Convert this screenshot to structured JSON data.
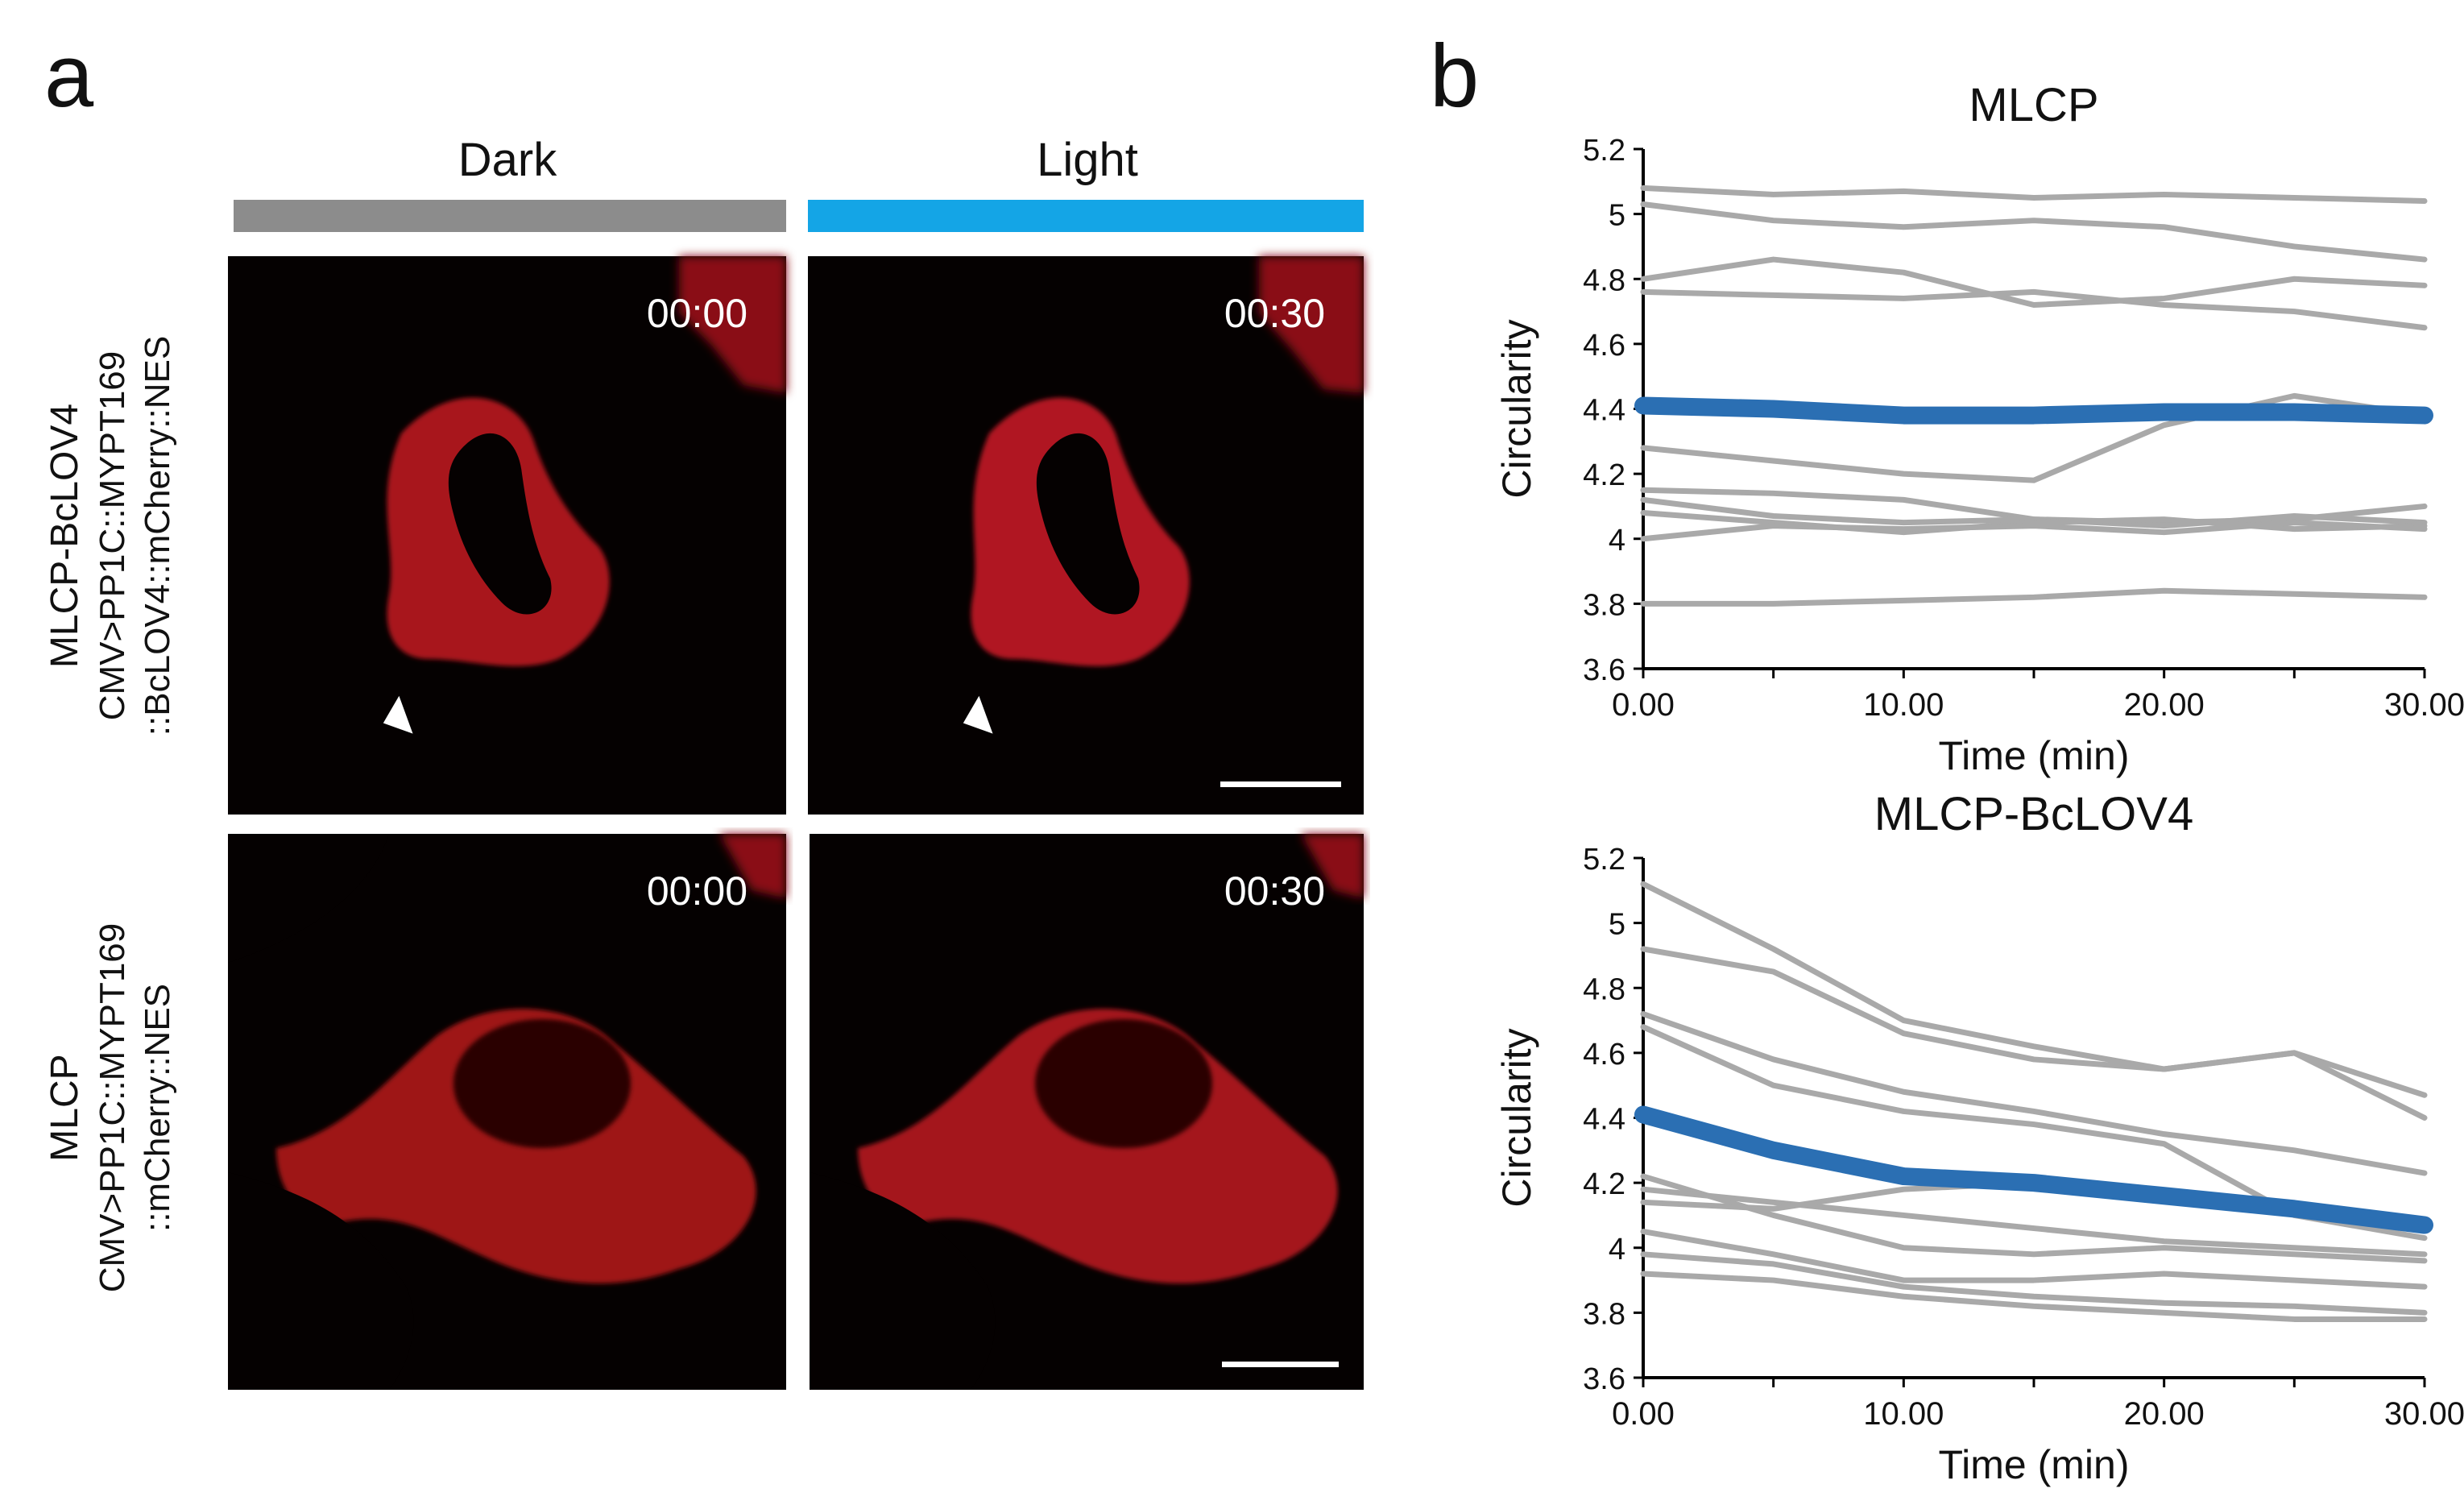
{
  "panels": {
    "a_label": "a",
    "b_label": "b"
  },
  "conditions": {
    "dark": {
      "label": "Dark",
      "bar_color": "#8c8c8c"
    },
    "light": {
      "label": "Light",
      "bar_color": "#14a5e6"
    }
  },
  "rows": [
    {
      "name": "MLCP-BcLOV4",
      "construct_line1": "CMV>PP1C::MYPT169",
      "construct_line2": "::BcLOV4::mCherry::NES",
      "time_dark": "00:00",
      "time_light": "00:30"
    },
    {
      "name": "MLCP",
      "construct_line1": "CMV>PP1C::MYPT169",
      "construct_line2": "::mCherry::NES",
      "time_dark": "00:00",
      "time_light": "00:30"
    }
  ],
  "colors": {
    "individual": "#a9a9a9",
    "mean": "#2b6fb3",
    "mcherry": "#c0141c"
  },
  "chart_data": [
    {
      "type": "line",
      "title": "MLCP",
      "xlabel": "Time (min)",
      "ylabel": "Circularity",
      "xlim": [
        0,
        30
      ],
      "ylim": [
        3.6,
        5.2
      ],
      "xticks": [
        "0.00",
        "10.00",
        "20.00",
        "30.00"
      ],
      "yticks": [
        "3.6",
        "3.8",
        "4",
        "4.2",
        "4.4",
        "4.6",
        "4.8",
        "5",
        "5.2"
      ],
      "x": [
        0,
        5,
        10,
        15,
        20,
        25,
        30
      ],
      "series": [
        {
          "role": "individual",
          "values": [
            5.08,
            5.06,
            5.07,
            5.05,
            5.06,
            5.05,
            5.04
          ]
        },
        {
          "role": "individual",
          "values": [
            5.03,
            4.98,
            4.96,
            4.98,
            4.96,
            4.9,
            4.86
          ]
        },
        {
          "role": "individual",
          "values": [
            4.8,
            4.86,
            4.82,
            4.72,
            4.74,
            4.8,
            4.78
          ]
        },
        {
          "role": "individual",
          "values": [
            4.76,
            4.75,
            4.74,
            4.76,
            4.72,
            4.7,
            4.65
          ]
        },
        {
          "role": "individual",
          "values": [
            4.28,
            4.24,
            4.2,
            4.18,
            4.35,
            4.44,
            4.38
          ]
        },
        {
          "role": "individual",
          "values": [
            4.15,
            4.14,
            4.12,
            4.06,
            4.05,
            4.06,
            4.1
          ]
        },
        {
          "role": "individual",
          "values": [
            4.12,
            4.07,
            4.05,
            4.06,
            4.04,
            4.07,
            4.05
          ]
        },
        {
          "role": "individual",
          "values": [
            4.08,
            4.05,
            4.02,
            4.05,
            4.06,
            4.03,
            4.04
          ]
        },
        {
          "role": "individual",
          "values": [
            4.0,
            4.04,
            4.03,
            4.04,
            4.02,
            4.05,
            4.03
          ]
        },
        {
          "role": "individual",
          "values": [
            3.8,
            3.8,
            3.81,
            3.82,
            3.84,
            3.83,
            3.82
          ]
        },
        {
          "role": "mean",
          "values": [
            4.41,
            4.4,
            4.38,
            4.38,
            4.39,
            4.39,
            4.38
          ]
        }
      ]
    },
    {
      "type": "line",
      "title": "MLCP-BcLOV4",
      "xlabel": "Time (min)",
      "ylabel": "Circularity",
      "xlim": [
        0,
        30
      ],
      "ylim": [
        3.6,
        5.2
      ],
      "xticks": [
        "0.00",
        "10.00",
        "20.00",
        "30.00"
      ],
      "yticks": [
        "3.6",
        "3.8",
        "4",
        "4.2",
        "4.4",
        "4.6",
        "4.8",
        "5",
        "5.2"
      ],
      "x": [
        0,
        5,
        10,
        15,
        20,
        25,
        30
      ],
      "series": [
        {
          "role": "individual",
          "values": [
            5.12,
            4.92,
            4.7,
            4.62,
            4.55,
            4.6,
            4.47
          ]
        },
        {
          "role": "individual",
          "values": [
            4.92,
            4.85,
            4.66,
            4.58,
            4.55,
            4.6,
            4.4
          ]
        },
        {
          "role": "individual",
          "values": [
            4.72,
            4.58,
            4.48,
            4.42,
            4.35,
            4.3,
            4.23
          ]
        },
        {
          "role": "individual",
          "values": [
            4.68,
            4.5,
            4.42,
            4.38,
            4.32,
            4.1,
            4.03
          ]
        },
        {
          "role": "individual",
          "values": [
            4.22,
            4.1,
            4.0,
            3.98,
            4.0,
            3.98,
            3.96
          ]
        },
        {
          "role": "individual",
          "values": [
            4.18,
            4.14,
            4.1,
            4.06,
            4.02,
            4.0,
            3.98
          ]
        },
        {
          "role": "individual",
          "values": [
            4.14,
            4.12,
            4.18,
            4.2,
            4.15,
            4.12,
            4.08
          ]
        },
        {
          "role": "individual",
          "values": [
            4.05,
            3.98,
            3.9,
            3.9,
            3.92,
            3.9,
            3.88
          ]
        },
        {
          "role": "individual",
          "values": [
            3.98,
            3.95,
            3.88,
            3.85,
            3.83,
            3.82,
            3.8
          ]
        },
        {
          "role": "individual",
          "values": [
            3.92,
            3.9,
            3.85,
            3.82,
            3.8,
            3.78,
            3.78
          ]
        },
        {
          "role": "mean",
          "values": [
            4.41,
            4.3,
            4.22,
            4.2,
            4.16,
            4.12,
            4.07
          ]
        }
      ]
    }
  ]
}
